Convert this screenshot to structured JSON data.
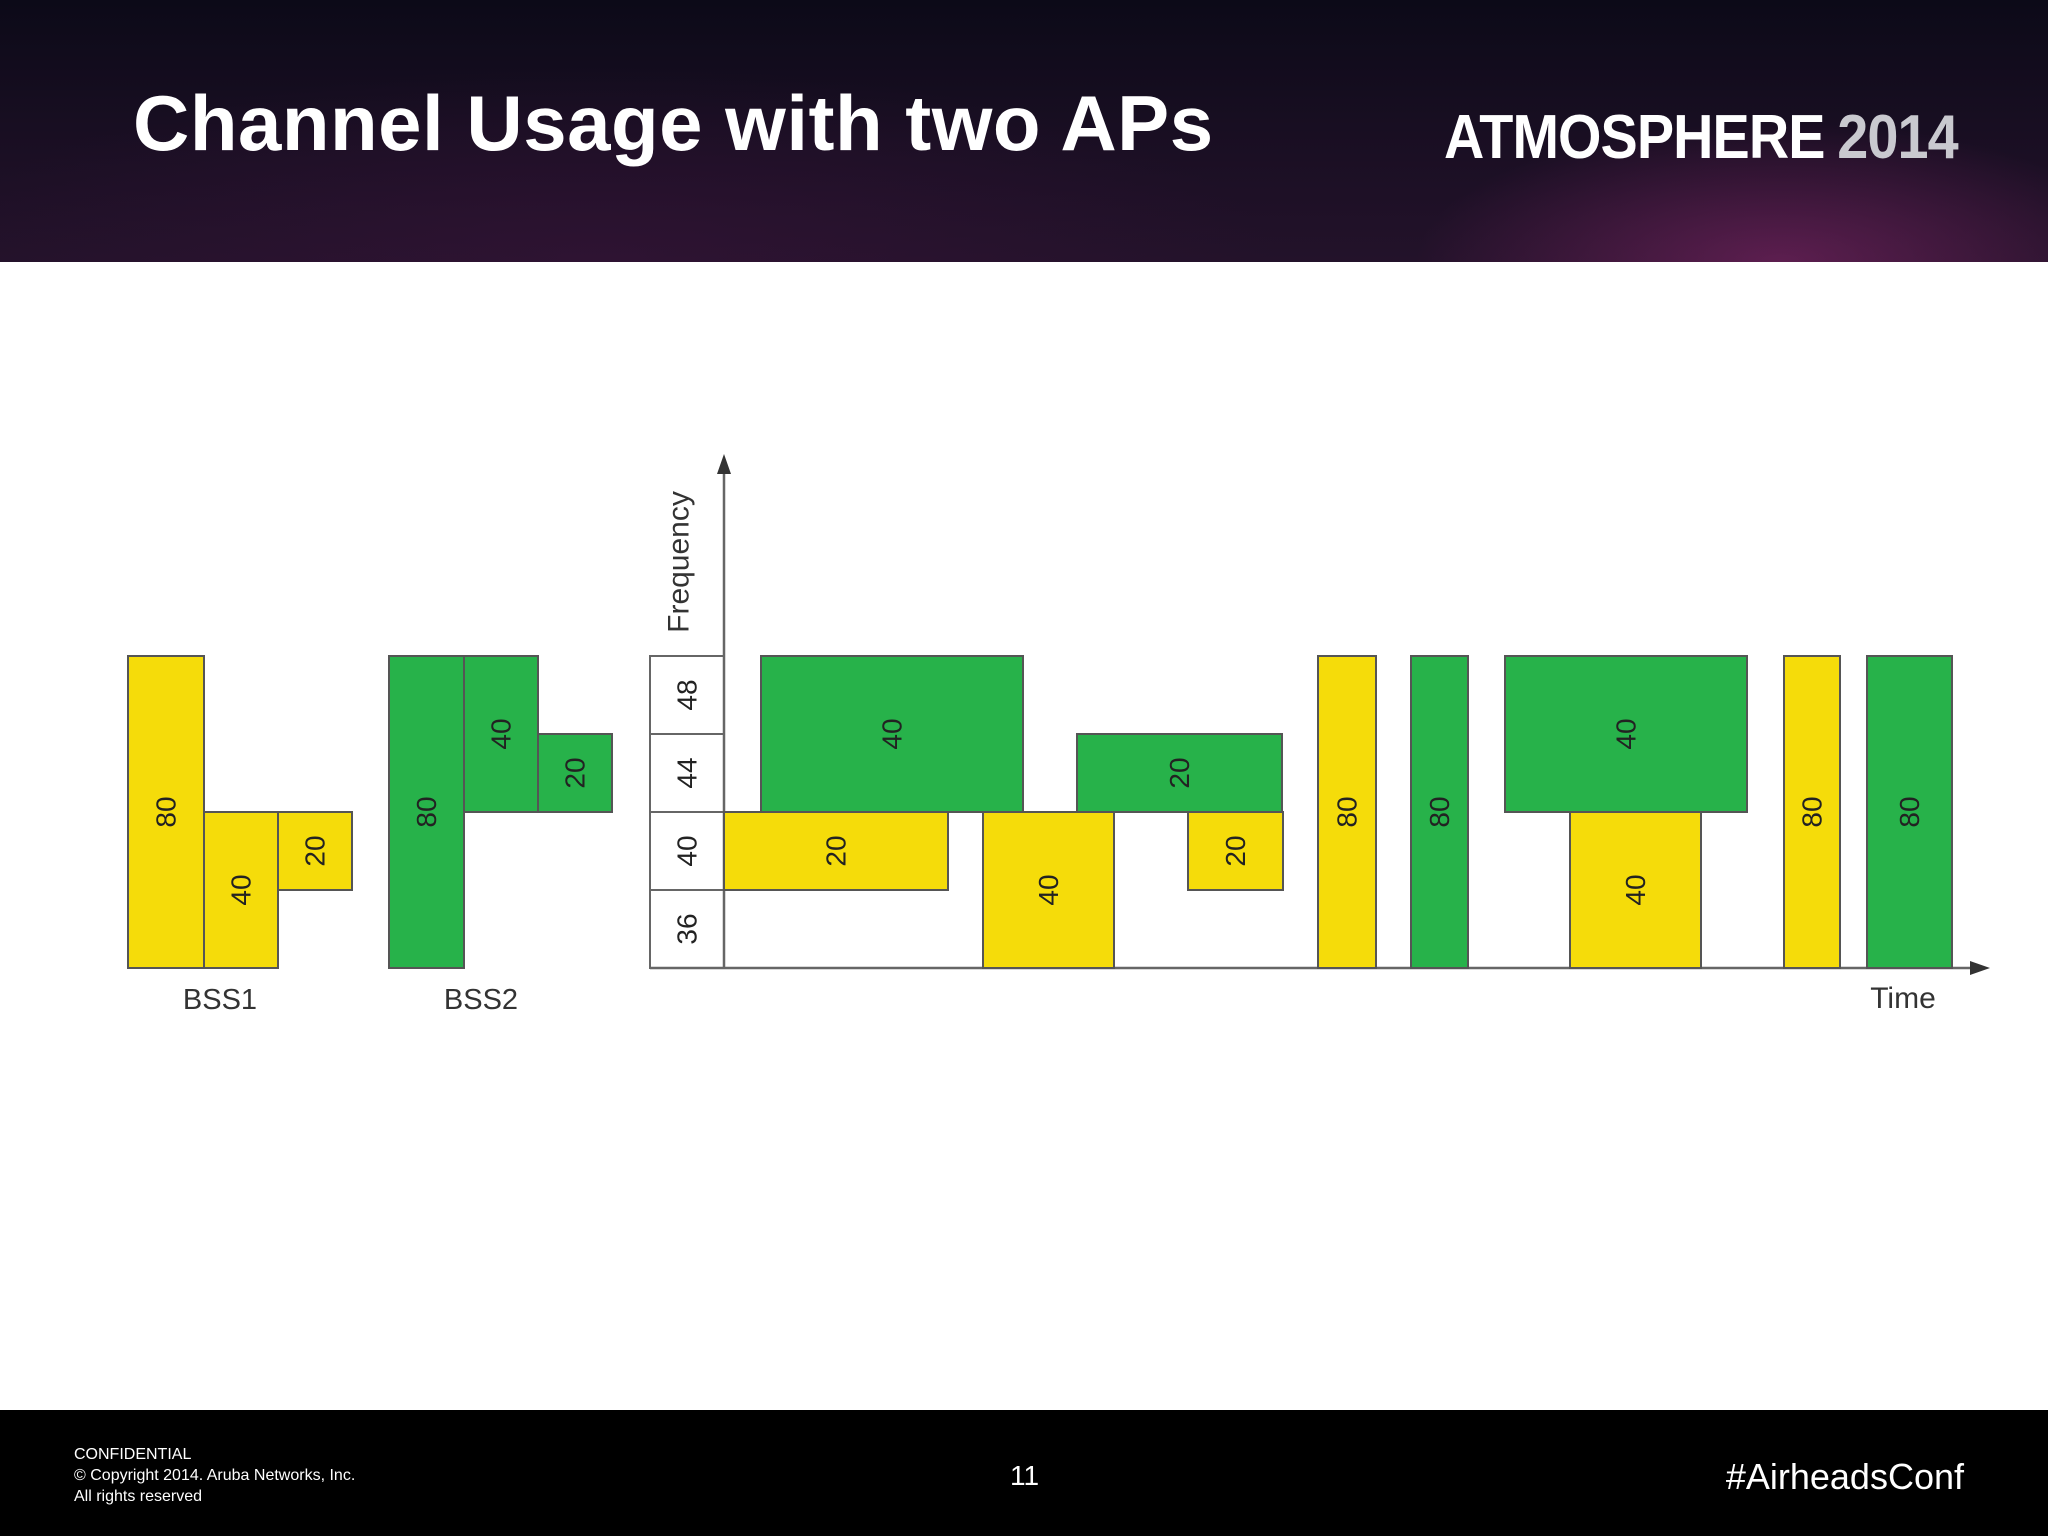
{
  "header": {
    "title": "Channel Usage with two APs",
    "brand_word": "ATMOSPHERE",
    "brand_year": "2014"
  },
  "diagram": {
    "colors": {
      "yellow": "#f5dc0a",
      "green": "#27b24a",
      "border": "#555555",
      "axis": "#666666",
      "label": "#333333"
    },
    "axis_labels": {
      "y": "Frequency",
      "x": "Time"
    },
    "channels": [
      "36",
      "40",
      "44",
      "48"
    ],
    "bss1": {
      "label": "BSS1",
      "color": "yellow",
      "blocks": [
        {
          "width": "80",
          "channels": [
            "36",
            "40",
            "44",
            "48"
          ]
        },
        {
          "width": "40",
          "channels": [
            "36",
            "40"
          ]
        },
        {
          "width": "20",
          "channels": [
            "40"
          ]
        }
      ]
    },
    "bss2": {
      "label": "BSS2",
      "color": "green",
      "blocks": [
        {
          "width": "80",
          "channels": [
            "36",
            "40",
            "44",
            "48"
          ]
        },
        {
          "width": "40",
          "channels": [
            "44",
            "48"
          ]
        },
        {
          "width": "20",
          "channels": [
            "44"
          ]
        }
      ]
    },
    "timeline": [
      {
        "order": 1,
        "bss": "BSS1",
        "color": "yellow",
        "width": "20",
        "channels": [
          "40"
        ]
      },
      {
        "order": 1,
        "bss": "BSS2",
        "color": "green",
        "width": "40",
        "channels": [
          "44",
          "48"
        ]
      },
      {
        "order": 2,
        "bss": "BSS1",
        "color": "yellow",
        "width": "40",
        "channels": [
          "36",
          "40"
        ]
      },
      {
        "order": 3,
        "bss": "BSS2",
        "color": "green",
        "width": "20",
        "channels": [
          "44"
        ]
      },
      {
        "order": 3,
        "bss": "BSS1",
        "color": "yellow",
        "width": "20",
        "channels": [
          "40"
        ]
      },
      {
        "order": 4,
        "bss": "BSS1",
        "color": "yellow",
        "width": "80",
        "channels": [
          "36",
          "40",
          "44",
          "48"
        ]
      },
      {
        "order": 5,
        "bss": "BSS2",
        "color": "green",
        "width": "80",
        "channels": [
          "36",
          "40",
          "44",
          "48"
        ]
      },
      {
        "order": 6,
        "bss": "BSS2",
        "color": "green",
        "width": "40",
        "channels": [
          "44",
          "48"
        ]
      },
      {
        "order": 6,
        "bss": "BSS1",
        "color": "yellow",
        "width": "40",
        "channels": [
          "36",
          "40"
        ]
      },
      {
        "order": 7,
        "bss": "BSS1",
        "color": "yellow",
        "width": "80",
        "channels": [
          "36",
          "40",
          "44",
          "48"
        ]
      },
      {
        "order": 8,
        "bss": "BSS2",
        "color": "green",
        "width": "80",
        "channels": [
          "36",
          "40",
          "44",
          "48"
        ]
      }
    ]
  },
  "footer": {
    "line1": "CONFIDENTIAL",
    "line2": "© Copyright 2014. Aruba Networks, Inc.",
    "line3": "All rights reserved",
    "page_number": "11",
    "hashtag": "#AirheadsConf"
  }
}
